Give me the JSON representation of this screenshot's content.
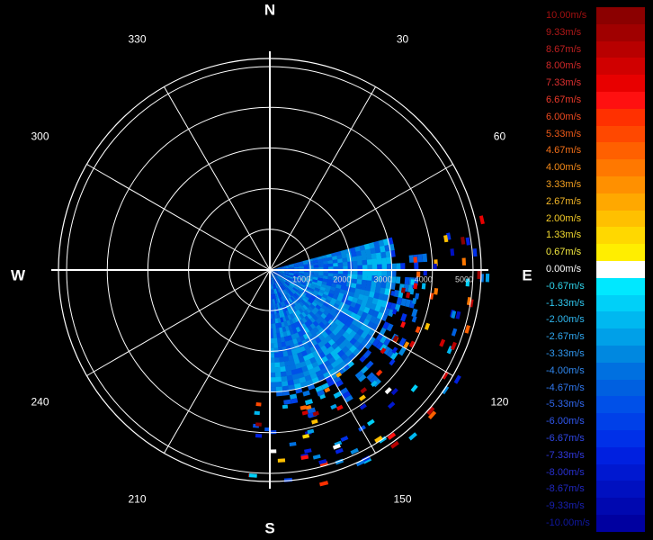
{
  "chart_data": {
    "type": "polar-radar-ppi",
    "title": "",
    "directions": {
      "north": "N",
      "east": "E",
      "south": "S",
      "west": "W"
    },
    "bearing_labels": [
      "30",
      "60",
      "120",
      "150",
      "210",
      "240",
      "300",
      "330"
    ],
    "range_labels": [
      "1000",
      "2000",
      "3000",
      "4000",
      "5000"
    ],
    "range_max": 5200,
    "spoke_bearings": [
      0,
      30,
      60,
      90,
      120,
      150,
      180,
      210,
      240,
      270,
      300,
      330
    ],
    "ring_ranges": [
      1000,
      2000,
      3000,
      4000,
      5000
    ],
    "data_sector": {
      "bearing_start": 75,
      "bearing_end": 180,
      "dense_range_max": 3000,
      "sparse_range_max": 5400
    },
    "velocity_unit": "m/s",
    "colorbar": [
      {
        "label": "10.00m/s",
        "color": "#8b0000",
        "text_color": "#a01010"
      },
      {
        "label": "9.33m/s",
        "color": "#a00000",
        "text_color": "#b01818"
      },
      {
        "label": "8.67m/s",
        "color": "#b80000",
        "text_color": "#c02020"
      },
      {
        "label": "8.00m/s",
        "color": "#d00000",
        "text_color": "#d02828"
      },
      {
        "label": "7.33m/s",
        "color": "#e80000",
        "text_color": "#e03030"
      },
      {
        "label": "6.67m/s",
        "color": "#ff1010",
        "text_color": "#ee3a2a"
      },
      {
        "label": "6.00m/s",
        "color": "#ff3000",
        "text_color": "#f04a20"
      },
      {
        "label": "5.33m/s",
        "color": "#ff4800",
        "text_color": "#f05a18"
      },
      {
        "label": "4.67m/s",
        "color": "#ff6000",
        "text_color": "#f57018"
      },
      {
        "label": "4.00m/s",
        "color": "#ff7800",
        "text_color": "#f58a18"
      },
      {
        "label": "3.33m/s",
        "color": "#ff9000",
        "text_color": "#f5a020"
      },
      {
        "label": "2.67m/s",
        "color": "#ffa800",
        "text_color": "#f5b828"
      },
      {
        "label": "2.00m/s",
        "color": "#ffc000",
        "text_color": "#f5cc28"
      },
      {
        "label": "1.33m/s",
        "color": "#ffd800",
        "text_color": "#f5dc30"
      },
      {
        "label": "0.67m/s",
        "color": "#ffee00",
        "text_color": "#f5ea40"
      },
      {
        "label": "0.00m/s",
        "color": "#ffffff",
        "text_color": "#ffffff"
      },
      {
        "label": "-0.67m/s",
        "color": "#00e8ff",
        "text_color": "#30d8f0"
      },
      {
        "label": "-1.33m/s",
        "color": "#00d0f8",
        "text_color": "#30c8f0"
      },
      {
        "label": "-2.00m/s",
        "color": "#00b8f0",
        "text_color": "#30b8f0"
      },
      {
        "label": "-2.67m/s",
        "color": "#00a0e8",
        "text_color": "#30a8f0"
      },
      {
        "label": "-3.33m/s",
        "color": "#0088e0",
        "text_color": "#3098f0"
      },
      {
        "label": "-4.00m/s",
        "color": "#0070e0",
        "text_color": "#3088f0"
      },
      {
        "label": "-4.67m/s",
        "color": "#0060e0",
        "text_color": "#3078f0"
      },
      {
        "label": "-5.33m/s",
        "color": "#0050e8",
        "text_color": "#3068f0"
      },
      {
        "label": "-6.00m/s",
        "color": "#0040e8",
        "text_color": "#3058f0"
      },
      {
        "label": "-6.67m/s",
        "color": "#0030e8",
        "text_color": "#3048e8"
      },
      {
        "label": "-7.33m/s",
        "color": "#0020e0",
        "text_color": "#3038e0"
      },
      {
        "label": "-8.00m/s",
        "color": "#0018d0",
        "text_color": "#2830d0"
      },
      {
        "label": "-8.67m/s",
        "color": "#0010c0",
        "text_color": "#2028c0"
      },
      {
        "label": "-9.33m/s",
        "color": "#0008b0",
        "text_color": "#1820b0"
      },
      {
        "label": "-10.00m/s",
        "color": "#0000a0",
        "text_color": "#1018a0"
      }
    ]
  }
}
